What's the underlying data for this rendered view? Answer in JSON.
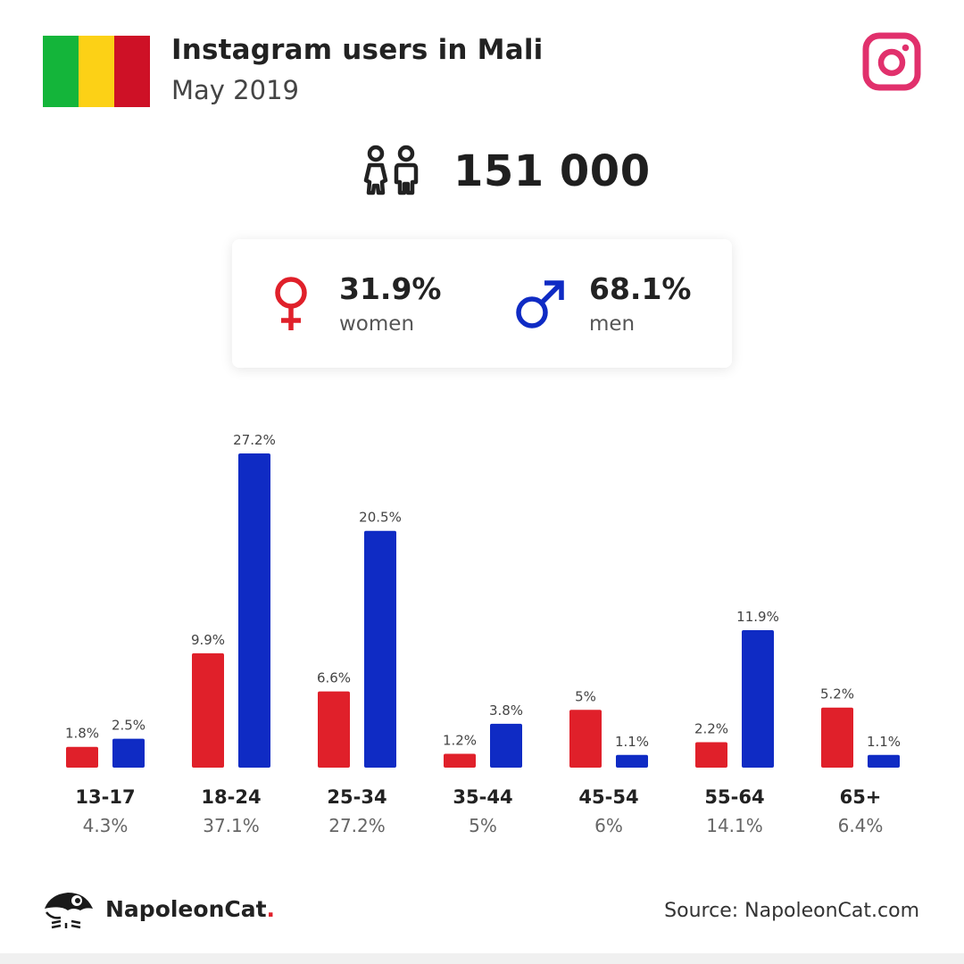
{
  "header": {
    "title": "Instagram users in Mali",
    "subtitle": "May 2019",
    "flag_colors": [
      "#14b53a",
      "#fcd116",
      "#ce1126"
    ],
    "brand_icon": "instagram-icon",
    "brand_color": "#e1306c"
  },
  "total": {
    "value": "151 000",
    "icon": "users-icon"
  },
  "gender": {
    "women": {
      "pct": "31.9%",
      "label": "women",
      "icon": "female-symbol-icon",
      "color": "#e0202a"
    },
    "men": {
      "pct": "68.1%",
      "label": "men",
      "icon": "male-symbol-icon",
      "color": "#0f2bc4"
    }
  },
  "chart_data": {
    "type": "bar",
    "categories": [
      "13-17",
      "18-24",
      "25-34",
      "35-44",
      "45-54",
      "55-64",
      "65+"
    ],
    "category_totals": [
      "4.3%",
      "37.1%",
      "27.2%",
      "5%",
      "6%",
      "14.1%",
      "6.4%"
    ],
    "series": [
      {
        "values": [
          1.8,
          9.9,
          6.6,
          1.2,
          5,
          2.2,
          5.2
        ],
        "labels": [
          "1.8%",
          "9.9%",
          "6.6%",
          "1.2%",
          "5%",
          "2.2%",
          "5.2%"
        ],
        "color": "#e0202a"
      },
      {
        "values": [
          2.5,
          27.2,
          20.5,
          3.8,
          1.1,
          11.9,
          1.1
        ],
        "labels": [
          "2.5%",
          "27.2%",
          "20.5%",
          "3.8%",
          "1.1%",
          "11.9%",
          "1.1%"
        ],
        "color": "#0f2bc4"
      }
    ],
    "ylim": [
      0,
      27.2
    ],
    "grid": false
  },
  "footer": {
    "brand_name": "NapoleonCat",
    "brand_dot": ".",
    "brand_icon": "napoleoncat-logo-icon",
    "source": "Source: NapoleonCat.com"
  }
}
